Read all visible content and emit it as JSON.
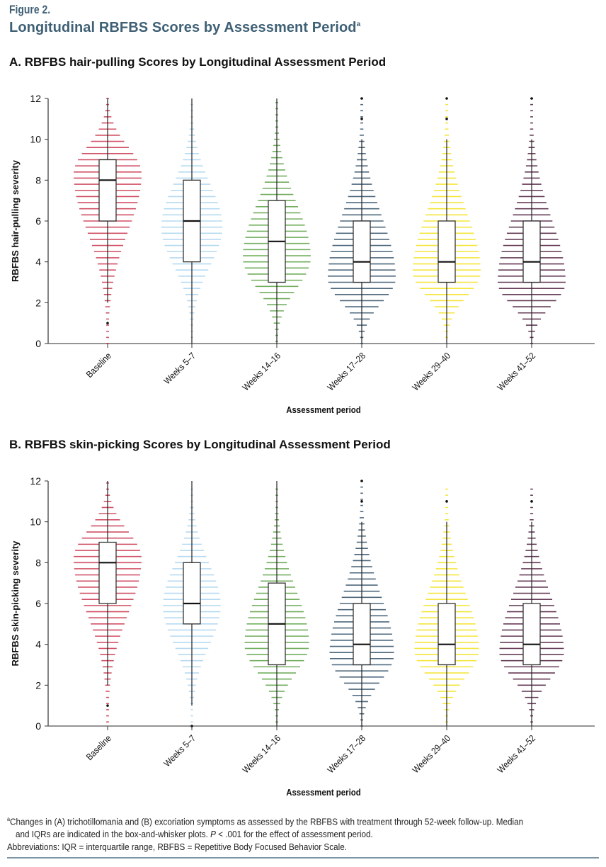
{
  "figure": {
    "label": "Figure 2.",
    "title": "Longitudinal RBFBS Scores by Assessment Period",
    "title_sup": "a"
  },
  "footnotes": {
    "line1_sup": "a",
    "line1": "Changes in (A) trichotillomania and (B) excoriation symptoms as assessed by the RBFBS with treatment through 52-week follow-up. Median",
    "line2_pre": "and IQRs are indicated in the box-and-whisker plots. ",
    "line2_p": "P",
    "line2_post": " < .001 for the effect of assessment period.",
    "line3": "Abbreviations: IQR = interquartile range, RBFBS = Repetitive Body Focused Behavior Scale."
  },
  "colors": {
    "Baseline": "#c8324a",
    "Weeks 5–7": "#a9d3ee",
    "Weeks 14–16": "#5aa043",
    "Weeks 17–28": "#2f4e66",
    "Weeks 29–40": "#f2e21a",
    "Weeks 41–52": "#4a1a38",
    "title": "#3f6075"
  },
  "chart_data": [
    {
      "type": "violin-box",
      "title": "A. RBFBS hair-pulling Scores by Longitudinal Assessment Period",
      "xlabel": "Assessment period",
      "ylabel": "RBFBS hair-pulling severity",
      "ylim": [
        0,
        12
      ],
      "yticks": [
        0,
        2,
        4,
        6,
        8,
        10,
        12
      ],
      "categories": [
        "Baseline",
        "Weeks 5–7",
        "Weeks 14–16",
        "Weeks 17–28",
        "Weeks 29–40",
        "Weeks 41–52"
      ],
      "boxes": [
        {
          "q1": 6,
          "median": 8,
          "q3": 9,
          "whisker_low": 2,
          "whisker_high": 12,
          "outliers": [
            1
          ],
          "density_peak": 8.3,
          "density_width": 1.0,
          "min": 0,
          "max": 12
        },
        {
          "q1": 4,
          "median": 6,
          "q3": 8,
          "whisker_low": 0,
          "whisker_high": 12,
          "outliers": [],
          "density_peak": 5.7,
          "density_width": 0.9,
          "min": 0.3,
          "max": 11.8
        },
        {
          "q1": 3,
          "median": 5,
          "q3": 7,
          "whisker_low": 0,
          "whisker_high": 12,
          "outliers": [],
          "density_peak": 4.2,
          "density_width": 1.0,
          "min": 0.1,
          "max": 11.8
        },
        {
          "q1": 3,
          "median": 4,
          "q3": 6,
          "whisker_low": 0,
          "whisker_high": 10,
          "outliers": [
            11,
            12
          ],
          "density_peak": 3.2,
          "density_width": 1.0,
          "min": 0,
          "max": 12
        },
        {
          "q1": 3,
          "median": 4,
          "q3": 6,
          "whisker_low": 0,
          "whisker_high": 10,
          "outliers": [
            11,
            12
          ],
          "density_peak": 3.5,
          "density_width": 1.0,
          "min": 0.3,
          "max": 12
        },
        {
          "q1": 3,
          "median": 4,
          "q3": 6,
          "whisker_low": 0,
          "whisker_high": 10,
          "outliers": [
            12
          ],
          "density_peak": 3.0,
          "density_width": 1.0,
          "min": 0,
          "max": 12
        }
      ]
    },
    {
      "type": "violin-box",
      "title": "B. RBFBS skin-picking Scores by Longitudinal Assessment Period",
      "xlabel": "Assessment period",
      "ylabel": "RBFBS skin-picking severity",
      "ylim": [
        0,
        12
      ],
      "yticks": [
        0,
        2,
        4,
        6,
        8,
        10,
        12
      ],
      "categories": [
        "Baseline",
        "Weeks 5–7",
        "Weeks 14–16",
        "Weeks 17–28",
        "Weeks 29–40",
        "Weeks 41–52"
      ],
      "boxes": [
        {
          "q1": 6,
          "median": 8,
          "q3": 9,
          "whisker_low": 2,
          "whisker_high": 12,
          "outliers": [
            1
          ],
          "density_peak": 8.2,
          "density_width": 1.0,
          "min": 0.2,
          "max": 11.9
        },
        {
          "q1": 5,
          "median": 6,
          "q3": 8,
          "whisker_low": 1,
          "whisker_high": 12,
          "outliers": [
            0
          ],
          "density_peak": 5.9,
          "density_width": 0.85,
          "min": 0.2,
          "max": 11.8
        },
        {
          "q1": 3,
          "median": 5,
          "q3": 7,
          "whisker_low": 0,
          "whisker_high": 12,
          "outliers": [],
          "density_peak": 4.0,
          "density_width": 0.95,
          "min": 0.2,
          "max": 11.8
        },
        {
          "q1": 3,
          "median": 4,
          "q3": 6,
          "whisker_low": 0,
          "whisker_high": 10,
          "outliers": [
            11,
            12
          ],
          "density_peak": 3.5,
          "density_width": 0.95,
          "min": 0,
          "max": 12
        },
        {
          "q1": 3,
          "median": 4,
          "q3": 6,
          "whisker_low": 0,
          "whisker_high": 10,
          "outliers": [
            11
          ],
          "density_peak": 3.7,
          "density_width": 0.95,
          "min": 0.2,
          "max": 11.7
        },
        {
          "q1": 3,
          "median": 4,
          "q3": 6,
          "whisker_low": 0,
          "whisker_high": 10,
          "outliers": [
            11
          ],
          "density_peak": 3.6,
          "density_width": 0.95,
          "min": 0.2,
          "max": 11.7
        }
      ]
    }
  ]
}
